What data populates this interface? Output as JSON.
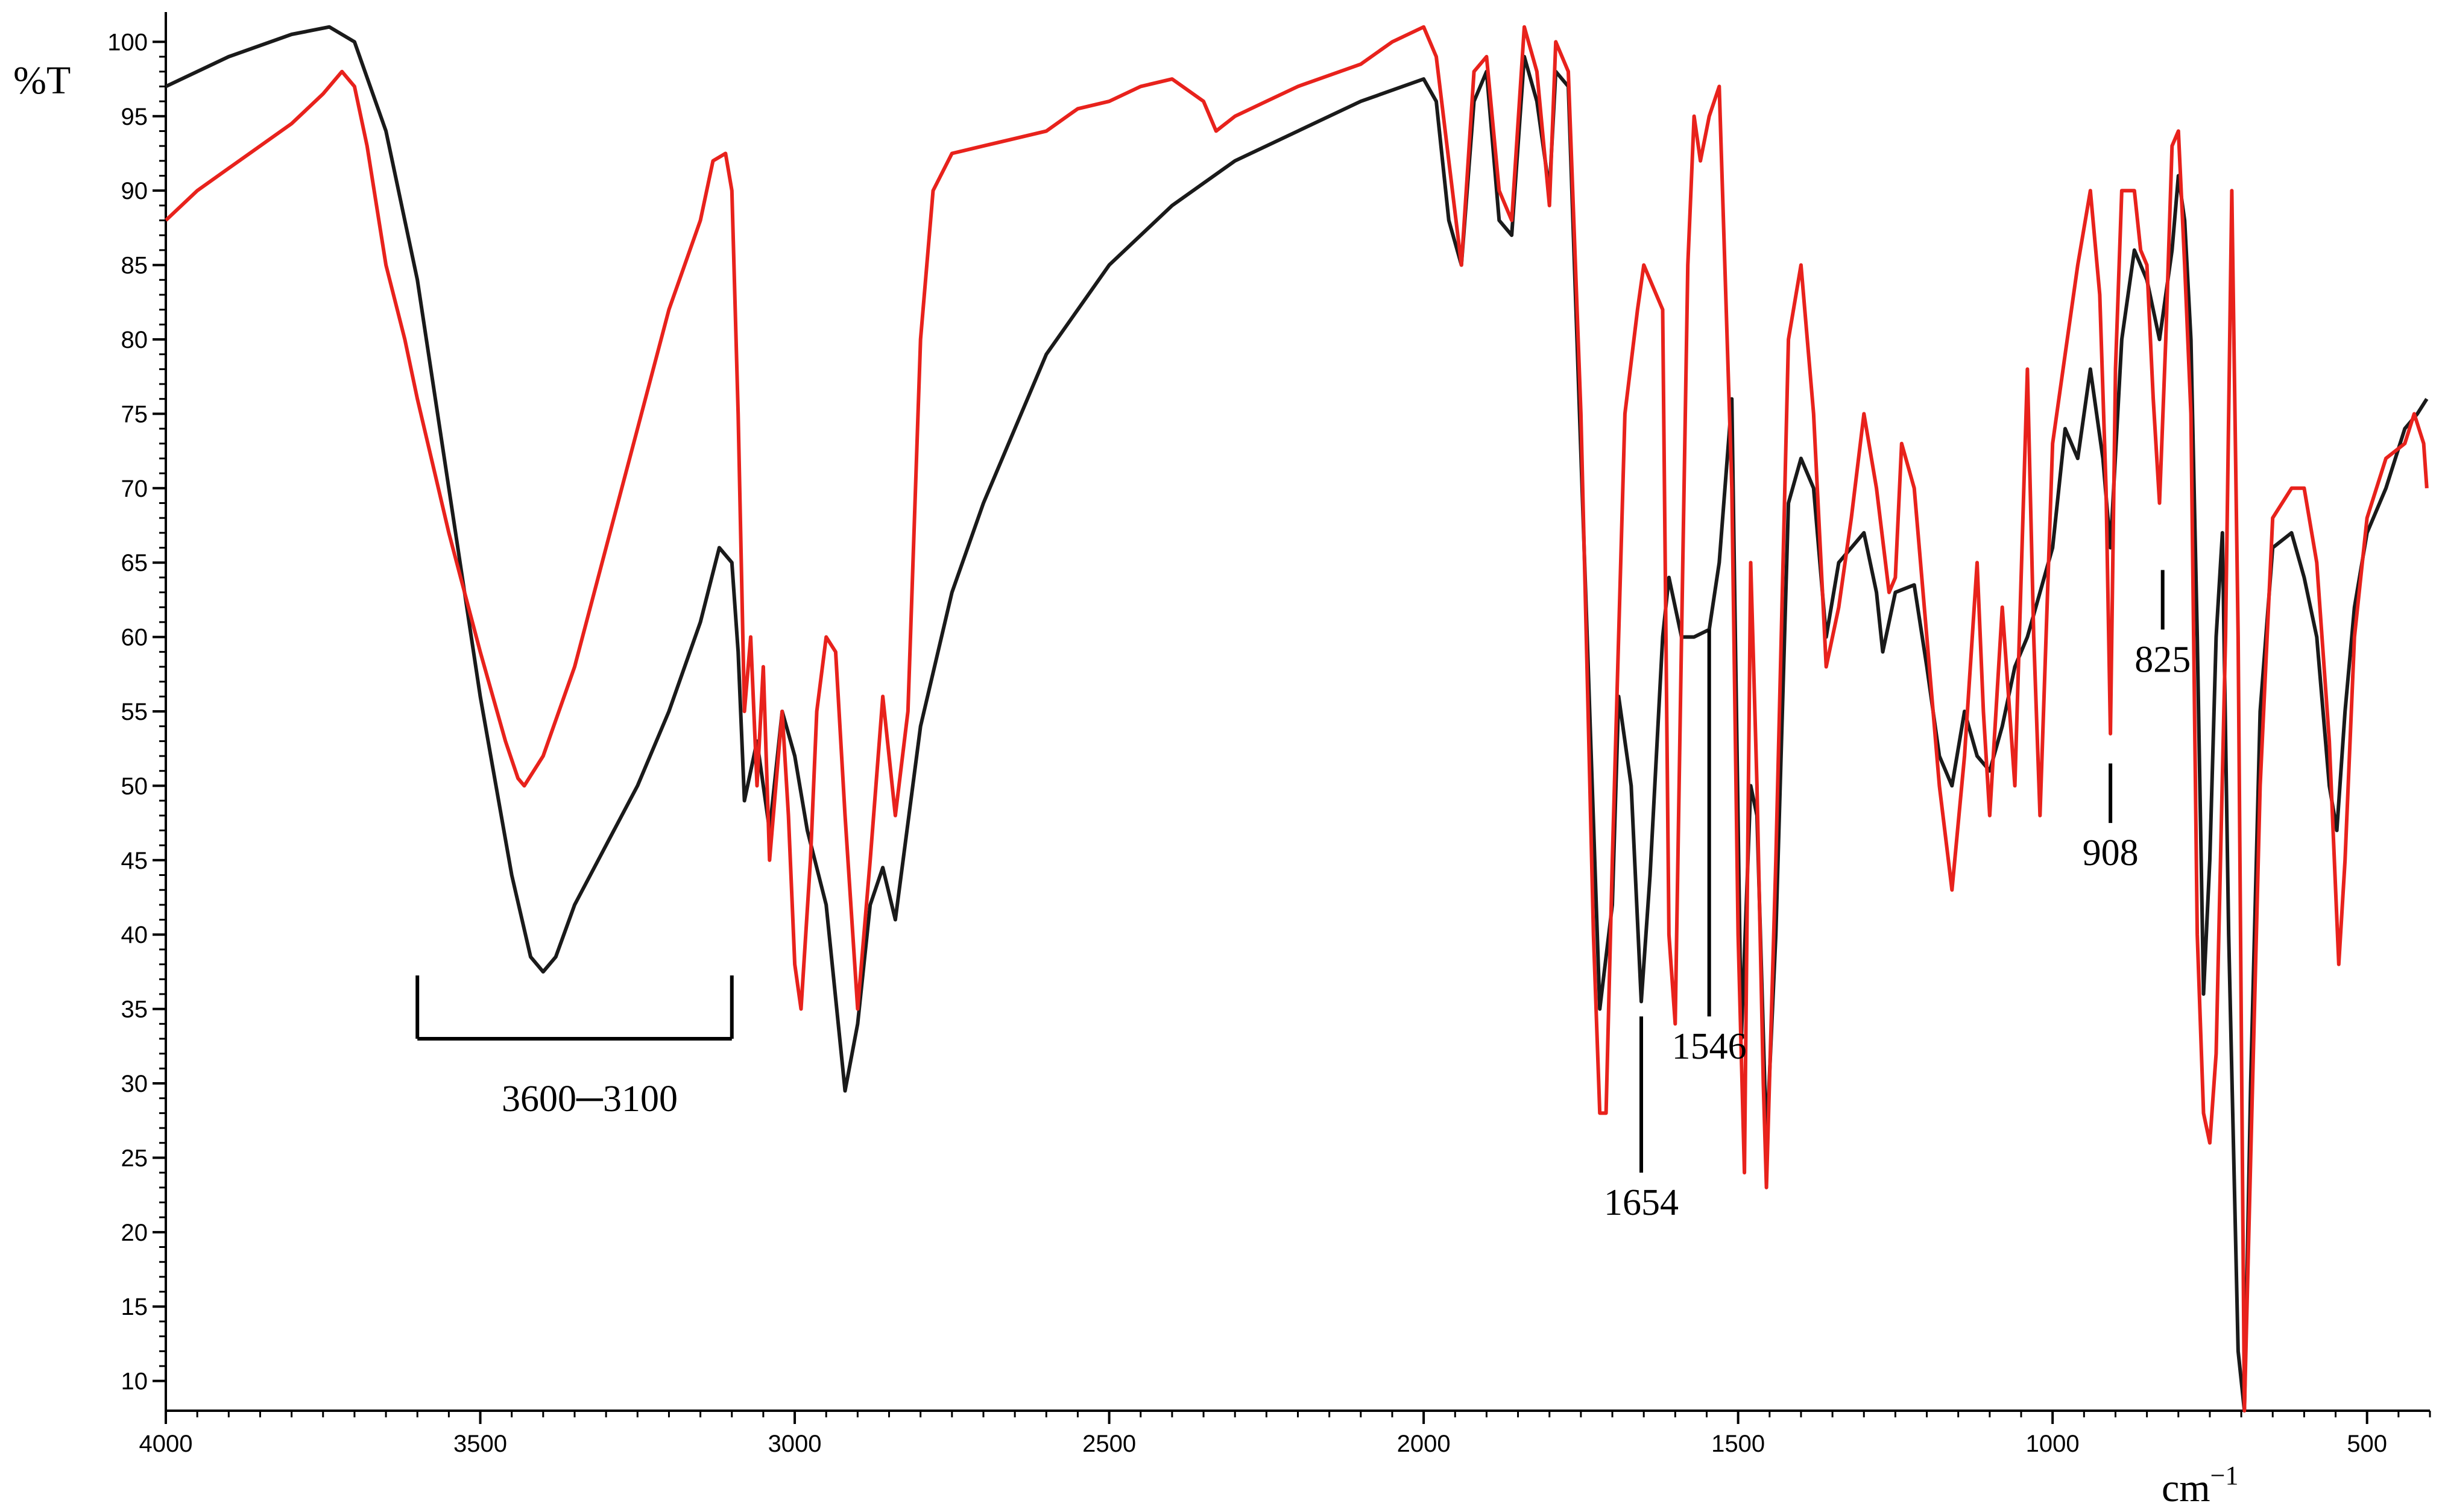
{
  "chart_data": {
    "type": "line",
    "title": "",
    "xlabel": "cm",
    "xlabel_sup": "−1",
    "ylabel": "%T",
    "xlim": [
      4000,
      400
    ],
    "ylim": [
      8,
      102
    ],
    "x_reversed": true,
    "grid": false,
    "legend": "none",
    "x_ticks": [
      4000,
      3500,
      3000,
      2500,
      2000,
      1500,
      1000,
      500
    ],
    "x_tick_labels": [
      "4000",
      "3500",
      "3000",
      "2500",
      "2000",
      "1500",
      "1000",
      "500"
    ],
    "y_ticks": [
      10,
      15,
      20,
      25,
      30,
      35,
      40,
      45,
      50,
      55,
      60,
      65,
      70,
      75,
      80,
      85,
      90,
      95,
      100
    ],
    "y_tick_labels": [
      "10",
      "15",
      "20",
      "25",
      "30",
      "35",
      "40",
      "45",
      "50",
      "55",
      "60",
      "65",
      "70",
      "75",
      "80",
      "85",
      "90",
      "95",
      "100"
    ],
    "series": [
      {
        "color": "#1a1a1a",
        "points": [
          [
            4000,
            97
          ],
          [
            3900,
            99
          ],
          [
            3800,
            100.5
          ],
          [
            3740,
            101
          ],
          [
            3700,
            100
          ],
          [
            3650,
            94
          ],
          [
            3600,
            84
          ],
          [
            3550,
            70
          ],
          [
            3500,
            56
          ],
          [
            3450,
            44
          ],
          [
            3420,
            38.5
          ],
          [
            3400,
            37.5
          ],
          [
            3380,
            38.5
          ],
          [
            3350,
            42
          ],
          [
            3300,
            46
          ],
          [
            3250,
            50
          ],
          [
            3200,
            55
          ],
          [
            3150,
            61
          ],
          [
            3120,
            66
          ],
          [
            3100,
            65
          ],
          [
            3090,
            59
          ],
          [
            3080,
            49
          ],
          [
            3060,
            53
          ],
          [
            3040,
            47
          ],
          [
            3020,
            55
          ],
          [
            3000,
            52
          ],
          [
            2980,
            47
          ],
          [
            2950,
            42
          ],
          [
            2920,
            29.5
          ],
          [
            2900,
            34
          ],
          [
            2880,
            42
          ],
          [
            2860,
            44.5
          ],
          [
            2840,
            41
          ],
          [
            2800,
            54
          ],
          [
            2750,
            63
          ],
          [
            2700,
            69
          ],
          [
            2650,
            74
          ],
          [
            2600,
            79
          ],
          [
            2500,
            85
          ],
          [
            2400,
            89
          ],
          [
            2300,
            92
          ],
          [
            2200,
            94
          ],
          [
            2100,
            96
          ],
          [
            2000,
            97.5
          ],
          [
            1980,
            96
          ],
          [
            1960,
            88
          ],
          [
            1940,
            85
          ],
          [
            1920,
            96
          ],
          [
            1900,
            98
          ],
          [
            1880,
            88
          ],
          [
            1860,
            87
          ],
          [
            1840,
            99
          ],
          [
            1820,
            96
          ],
          [
            1800,
            90
          ],
          [
            1790,
            98
          ],
          [
            1770,
            97
          ],
          [
            1740,
            60
          ],
          [
            1720,
            35
          ],
          [
            1700,
            42
          ],
          [
            1690,
            56
          ],
          [
            1670,
            50
          ],
          [
            1654,
            35.5
          ],
          [
            1640,
            44
          ],
          [
            1620,
            60
          ],
          [
            1610,
            64
          ],
          [
            1590,
            60
          ],
          [
            1570,
            60
          ],
          [
            1546,
            60.5
          ],
          [
            1530,
            65
          ],
          [
            1510,
            76
          ],
          [
            1495,
            33
          ],
          [
            1480,
            50
          ],
          [
            1470,
            48
          ],
          [
            1455,
            26
          ],
          [
            1440,
            40
          ],
          [
            1420,
            69
          ],
          [
            1400,
            72
          ],
          [
            1380,
            70
          ],
          [
            1360,
            60
          ],
          [
            1340,
            65
          ],
          [
            1300,
            67
          ],
          [
            1280,
            63
          ],
          [
            1270,
            59
          ],
          [
            1250,
            63
          ],
          [
            1220,
            63.5
          ],
          [
            1200,
            58
          ],
          [
            1180,
            52
          ],
          [
            1160,
            50
          ],
          [
            1140,
            55
          ],
          [
            1120,
            52
          ],
          [
            1100,
            51
          ],
          [
            1080,
            54
          ],
          [
            1060,
            58
          ],
          [
            1040,
            60
          ],
          [
            1020,
            63
          ],
          [
            1000,
            66
          ],
          [
            980,
            74
          ],
          [
            960,
            72
          ],
          [
            940,
            78
          ],
          [
            920,
            72
          ],
          [
            908,
            66
          ],
          [
            890,
            80
          ],
          [
            870,
            86
          ],
          [
            850,
            84
          ],
          [
            830,
            80
          ],
          [
            810,
            86
          ],
          [
            800,
            91
          ],
          [
            790,
            88
          ],
          [
            780,
            80
          ],
          [
            770,
            60
          ],
          [
            760,
            36
          ],
          [
            750,
            45
          ],
          [
            740,
            60
          ],
          [
            730,
            67
          ],
          [
            720,
            40
          ],
          [
            705,
            12
          ],
          [
            695,
            8
          ],
          [
            685,
            30
          ],
          [
            670,
            55
          ],
          [
            650,
            66
          ],
          [
            620,
            67
          ],
          [
            600,
            64
          ],
          [
            580,
            60
          ],
          [
            560,
            50
          ],
          [
            548,
            47
          ],
          [
            535,
            55
          ],
          [
            520,
            62
          ],
          [
            500,
            67
          ],
          [
            470,
            70
          ],
          [
            440,
            74
          ],
          [
            420,
            75
          ],
          [
            405,
            76
          ]
        ]
      },
      {
        "color": "#e8221c",
        "points": [
          [
            4000,
            88
          ],
          [
            3950,
            90
          ],
          [
            3900,
            91.5
          ],
          [
            3850,
            93
          ],
          [
            3800,
            94.5
          ],
          [
            3750,
            96.5
          ],
          [
            3720,
            98
          ],
          [
            3700,
            97
          ],
          [
            3680,
            93
          ],
          [
            3650,
            85
          ],
          [
            3620,
            80
          ],
          [
            3600,
            76
          ],
          [
            3550,
            67
          ],
          [
            3500,
            59
          ],
          [
            3460,
            53
          ],
          [
            3440,
            50.5
          ],
          [
            3430,
            50
          ],
          [
            3400,
            52
          ],
          [
            3350,
            58
          ],
          [
            3300,
            66
          ],
          [
            3250,
            74
          ],
          [
            3200,
            82
          ],
          [
            3150,
            88
          ],
          [
            3130,
            92
          ],
          [
            3110,
            92.5
          ],
          [
            3100,
            90
          ],
          [
            3090,
            75
          ],
          [
            3080,
            55
          ],
          [
            3070,
            60
          ],
          [
            3060,
            50
          ],
          [
            3050,
            58
          ],
          [
            3040,
            45
          ],
          [
            3020,
            55
          ],
          [
            3010,
            48
          ],
          [
            3000,
            38
          ],
          [
            2990,
            35
          ],
          [
            2975,
            45
          ],
          [
            2965,
            55
          ],
          [
            2950,
            60
          ],
          [
            2935,
            59
          ],
          [
            2920,
            48
          ],
          [
            2900,
            35
          ],
          [
            2880,
            45
          ],
          [
            2860,
            56
          ],
          [
            2840,
            48
          ],
          [
            2820,
            55
          ],
          [
            2800,
            80
          ],
          [
            2780,
            90
          ],
          [
            2750,
            92.5
          ],
          [
            2700,
            93
          ],
          [
            2650,
            93.5
          ],
          [
            2600,
            94
          ],
          [
            2550,
            95.5
          ],
          [
            2500,
            96
          ],
          [
            2450,
            97
          ],
          [
            2400,
            97.5
          ],
          [
            2350,
            96
          ],
          [
            2330,
            94
          ],
          [
            2300,
            95
          ],
          [
            2250,
            96
          ],
          [
            2200,
            97
          ],
          [
            2100,
            98.5
          ],
          [
            2050,
            100
          ],
          [
            2000,
            101
          ],
          [
            1980,
            99
          ],
          [
            1960,
            92
          ],
          [
            1940,
            85
          ],
          [
            1920,
            98
          ],
          [
            1900,
            99
          ],
          [
            1880,
            90
          ],
          [
            1860,
            88
          ],
          [
            1840,
            101
          ],
          [
            1820,
            98
          ],
          [
            1800,
            89
          ],
          [
            1790,
            100
          ],
          [
            1770,
            98
          ],
          [
            1750,
            75
          ],
          [
            1730,
            40
          ],
          [
            1720,
            28
          ],
          [
            1710,
            28
          ],
          [
            1700,
            45
          ],
          [
            1680,
            75
          ],
          [
            1660,
            82
          ],
          [
            1650,
            85
          ],
          [
            1640,
            84
          ],
          [
            1620,
            82
          ],
          [
            1610,
            40
          ],
          [
            1600,
            34
          ],
          [
            1590,
            60
          ],
          [
            1580,
            85
          ],
          [
            1570,
            95
          ],
          [
            1560,
            92
          ],
          [
            1546,
            95
          ],
          [
            1530,
            97
          ],
          [
            1510,
            70
          ],
          [
            1500,
            40
          ],
          [
            1490,
            24
          ],
          [
            1480,
            65
          ],
          [
            1470,
            50
          ],
          [
            1460,
            30
          ],
          [
            1455,
            23
          ],
          [
            1440,
            45
          ],
          [
            1420,
            80
          ],
          [
            1400,
            85
          ],
          [
            1380,
            75
          ],
          [
            1360,
            58
          ],
          [
            1340,
            62
          ],
          [
            1320,
            68
          ],
          [
            1300,
            75
          ],
          [
            1280,
            70
          ],
          [
            1260,
            63
          ],
          [
            1250,
            64
          ],
          [
            1240,
            73
          ],
          [
            1220,
            70
          ],
          [
            1200,
            60
          ],
          [
            1180,
            50
          ],
          [
            1160,
            43
          ],
          [
            1140,
            52
          ],
          [
            1120,
            65
          ],
          [
            1110,
            55
          ],
          [
            1100,
            48
          ],
          [
            1080,
            62
          ],
          [
            1060,
            50
          ],
          [
            1040,
            78
          ],
          [
            1030,
            60
          ],
          [
            1020,
            48
          ],
          [
            1000,
            73
          ],
          [
            980,
            79
          ],
          [
            960,
            85
          ],
          [
            940,
            90
          ],
          [
            925,
            83
          ],
          [
            915,
            70
          ],
          [
            908,
            53.5
          ],
          [
            900,
            78
          ],
          [
            890,
            90
          ],
          [
            870,
            90
          ],
          [
            860,
            86
          ],
          [
            850,
            85
          ],
          [
            840,
            76
          ],
          [
            830,
            69
          ],
          [
            820,
            80
          ],
          [
            810,
            93
          ],
          [
            800,
            94
          ],
          [
            790,
            85
          ],
          [
            780,
            75
          ],
          [
            770,
            40
          ],
          [
            760,
            28
          ],
          [
            750,
            26
          ],
          [
            740,
            32
          ],
          [
            725,
            60
          ],
          [
            715,
            90
          ],
          [
            705,
            60
          ],
          [
            695,
            8
          ],
          [
            685,
            25
          ],
          [
            670,
            50
          ],
          [
            650,
            68
          ],
          [
            620,
            70
          ],
          [
            600,
            70
          ],
          [
            580,
            65
          ],
          [
            560,
            53
          ],
          [
            545,
            38
          ],
          [
            535,
            45
          ],
          [
            520,
            60
          ],
          [
            500,
            68
          ],
          [
            470,
            72
          ],
          [
            440,
            73
          ],
          [
            425,
            75
          ],
          [
            410,
            73
          ],
          [
            405,
            70
          ]
        ]
      }
    ],
    "annotations": [
      {
        "text": "3600─3100",
        "type": "bracket",
        "x_start": 3600,
        "x_end": 3100,
        "y": 33
      },
      {
        "text": "1654",
        "type": "marker",
        "x": 1654,
        "y1": 34.5,
        "y2": 24
      },
      {
        "text": "1546",
        "type": "marker",
        "x": 1546,
        "y1": 60.5,
        "y2": 34.5
      },
      {
        "text": "908",
        "type": "marker",
        "x": 908,
        "y1": 51.5,
        "y2": 47.5
      },
      {
        "text": "825",
        "type": "marker",
        "x": 825,
        "y1": 64.5,
        "y2": 60.5
      }
    ]
  }
}
